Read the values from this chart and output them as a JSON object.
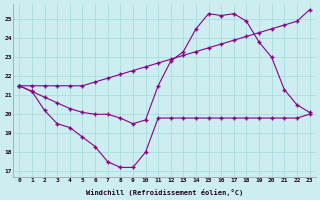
{
  "xlabel": "Windchill (Refroidissement éolien,°C)",
  "background_color": "#cceef0",
  "grid_color": "#aadddf",
  "line_color": "#880088",
  "xlim": [
    -0.5,
    23.5
  ],
  "ylim": [
    16.7,
    25.8
  ],
  "yticks": [
    17,
    18,
    19,
    20,
    21,
    22,
    23,
    24,
    25
  ],
  "xticks": [
    0,
    1,
    2,
    3,
    4,
    5,
    6,
    7,
    8,
    9,
    10,
    11,
    12,
    13,
    14,
    15,
    16,
    17,
    18,
    19,
    20,
    21,
    22,
    23
  ],
  "line1_x": [
    0,
    1,
    2,
    3,
    4,
    5,
    6,
    7,
    8,
    9,
    10,
    11,
    12,
    13,
    14,
    15,
    16,
    17,
    18,
    19,
    20,
    21,
    22,
    23
  ],
  "line1_y": [
    21.5,
    21.2,
    20.2,
    19.5,
    19.3,
    18.8,
    18.3,
    17.5,
    17.2,
    17.2,
    18.0,
    19.8,
    19.8,
    19.8,
    19.8,
    19.8,
    19.8,
    19.8,
    19.8,
    19.8,
    19.8,
    19.8,
    19.8,
    20.0
  ],
  "line2_x": [
    0,
    1,
    2,
    3,
    4,
    5,
    6,
    7,
    8,
    9,
    10,
    11,
    12,
    13,
    14,
    15,
    16,
    17,
    18,
    19,
    20,
    21,
    22,
    23
  ],
  "line2_y": [
    21.5,
    21.2,
    20.9,
    20.6,
    20.3,
    20.1,
    20.0,
    20.0,
    19.8,
    19.5,
    19.7,
    21.5,
    22.8,
    23.3,
    24.5,
    25.3,
    25.2,
    25.3,
    24.9,
    23.8,
    23.0,
    21.3,
    20.5,
    20.1
  ],
  "line3_x": [
    0,
    1,
    2,
    3,
    4,
    5,
    6,
    7,
    8,
    9,
    10,
    11,
    12,
    13,
    14,
    15,
    16,
    17,
    18,
    19,
    20,
    21,
    22,
    23
  ],
  "line3_y": [
    21.5,
    21.5,
    21.5,
    21.5,
    21.5,
    21.5,
    21.7,
    21.9,
    22.1,
    22.3,
    22.5,
    22.7,
    22.9,
    23.1,
    23.3,
    23.5,
    23.7,
    23.9,
    24.1,
    24.3,
    24.5,
    24.7,
    24.9,
    25.5
  ]
}
